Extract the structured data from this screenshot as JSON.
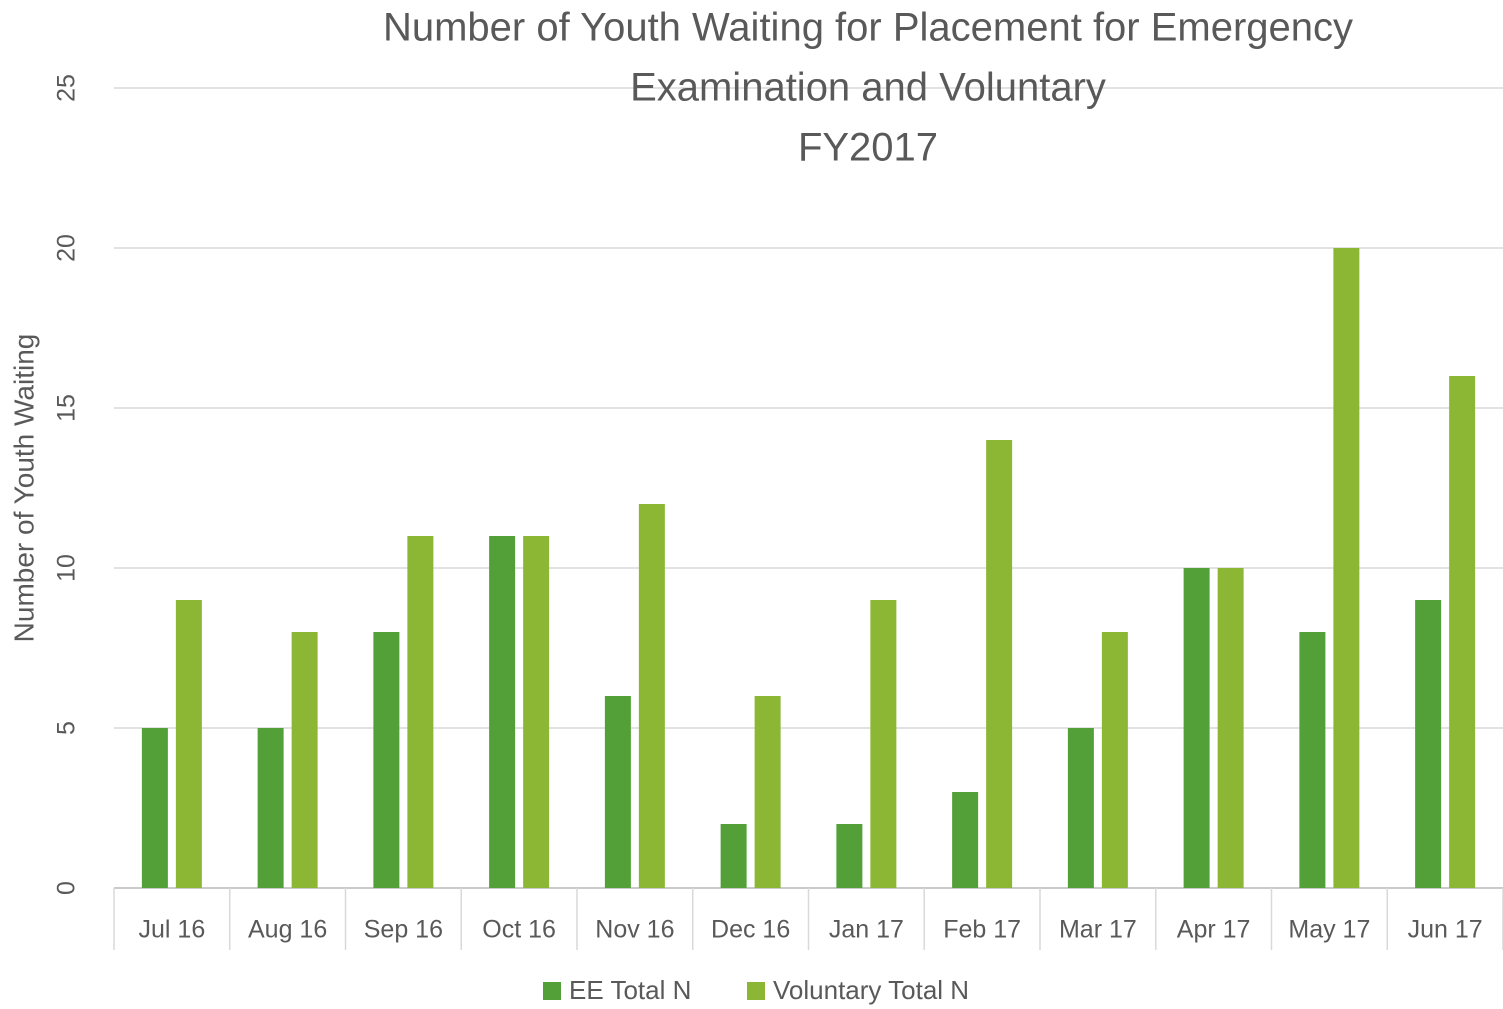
{
  "chart_data": {
    "type": "bar",
    "title": [
      "Number of Youth Waiting for Placement for Emergency",
      "Examination and Voluntary",
      "FY2017"
    ],
    "y_axis_label": "Number of Youth Waiting",
    "categories": [
      "Jul 16",
      "Aug 16",
      "Sep 16",
      "Oct 16",
      "Nov 16",
      "Dec 16",
      "Jan 17",
      "Feb 17",
      "Mar 17",
      "Apr 17",
      "May 17",
      "Jun 17"
    ],
    "series": [
      {
        "name": "EE Total N",
        "color": "#539f38",
        "values": [
          5,
          5,
          8,
          11,
          6,
          2,
          2,
          3,
          5,
          10,
          8,
          9
        ]
      },
      {
        "name": "Voluntary Total N",
        "color": "#8cb735",
        "values": [
          9,
          8,
          11,
          11,
          12,
          6,
          9,
          14,
          8,
          10,
          20,
          16
        ]
      }
    ],
    "ylim": [
      0,
      25
    ],
    "yticks": [
      0,
      5,
      10,
      15,
      20,
      25
    ],
    "grid": true,
    "legend": "bottom"
  }
}
